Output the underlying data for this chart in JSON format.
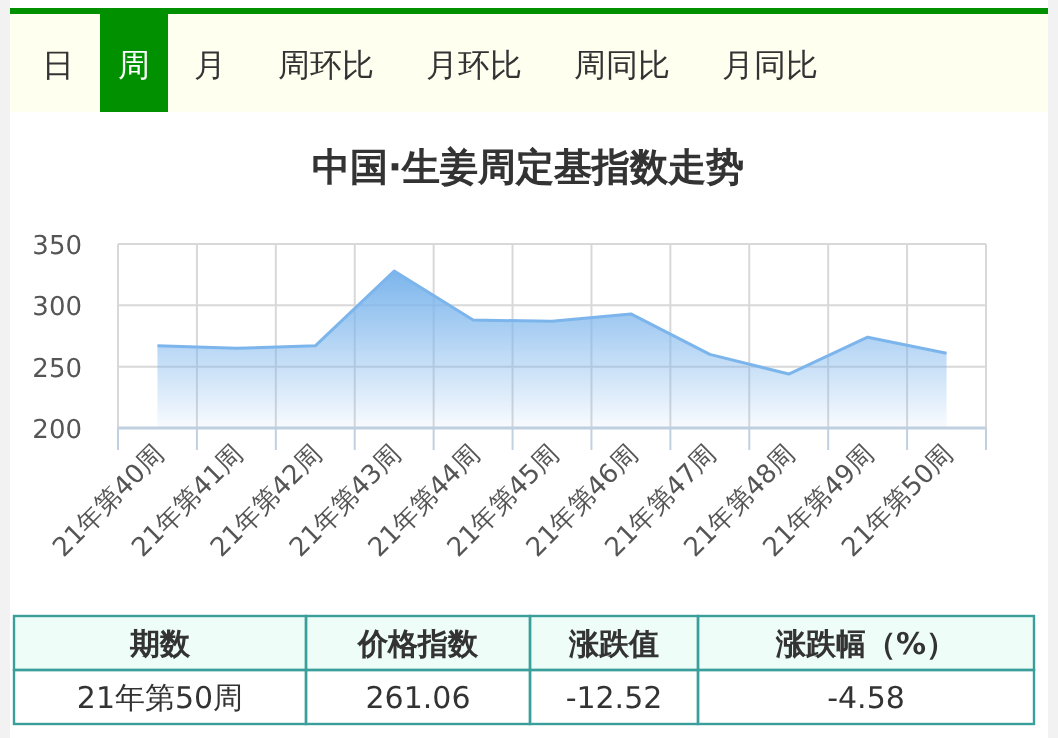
{
  "chart_data": {
    "type": "area",
    "title": "中国·生姜周定基指数走势",
    "categories": [
      "21年第40周",
      "21年第41周",
      "21年第42周",
      "21年第43周",
      "21年第44周",
      "21年第45周",
      "21年第46周",
      "21年第47周",
      "21年第48周",
      "21年第49周",
      "21年第50周"
    ],
    "values": [
      267,
      265,
      267,
      328,
      288,
      287,
      293,
      260,
      244,
      274,
      261
    ],
    "color": "#7cb5ec",
    "ylim": [
      200,
      350
    ],
    "yticks": [
      200,
      250,
      300,
      350
    ],
    "grid": true,
    "annotations": [
      "日",
      "周",
      "月",
      "周环比",
      "月环比",
      "周同比",
      "月同比",
      "期数",
      "价格指数",
      "涨跌值",
      "涨跌幅（%）",
      "21年第50周",
      "261.06",
      "-12.52",
      "-4.58"
    ]
  }
}
